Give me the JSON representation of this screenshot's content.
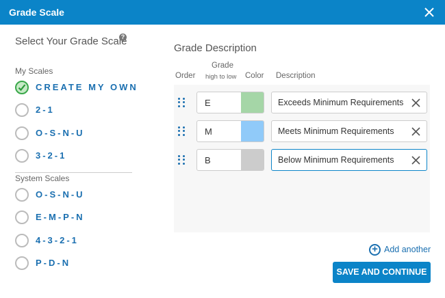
{
  "dialog": {
    "title": "Grade Scale",
    "close_icon": "close-icon"
  },
  "left": {
    "title": "Select Your Grade Scale",
    "help_icon": "?",
    "my_scales_label": "My Scales",
    "system_scales_label": "System Scales",
    "my_scales": [
      {
        "label": "CREATE MY OWN",
        "selected": true
      },
      {
        "label": "2-1",
        "selected": false
      },
      {
        "label": "O-S-N-U",
        "selected": false
      },
      {
        "label": "3-2-1",
        "selected": false
      }
    ],
    "system_scales": [
      {
        "label": "O-S-N-U",
        "selected": false
      },
      {
        "label": "E-M-P-N",
        "selected": false
      },
      {
        "label": "4-3-2-1",
        "selected": false
      },
      {
        "label": "P-D-N",
        "selected": false
      }
    ]
  },
  "right": {
    "title": "Grade Description",
    "col_order": "Order",
    "col_grade": "Grade",
    "col_grade_sub": "high to low",
    "col_color": "Color",
    "col_description": "Description",
    "rows": [
      {
        "grade": "E",
        "color": "#a5d6a7",
        "description": "Exceeds Minimum Requirements"
      },
      {
        "grade": "M",
        "color": "#90caf9",
        "description": "Meets Minimum Requirements"
      },
      {
        "grade": "B",
        "color": "#cccccc",
        "description": "Below Minimum Requirements"
      }
    ],
    "add_another": "Add another",
    "add_icon": "+",
    "save_button": "SAVE AND CONTINUE"
  },
  "colors": {
    "brand": "#0b84c8",
    "label": "#1a6fb0",
    "selected": "#3aa84a"
  }
}
